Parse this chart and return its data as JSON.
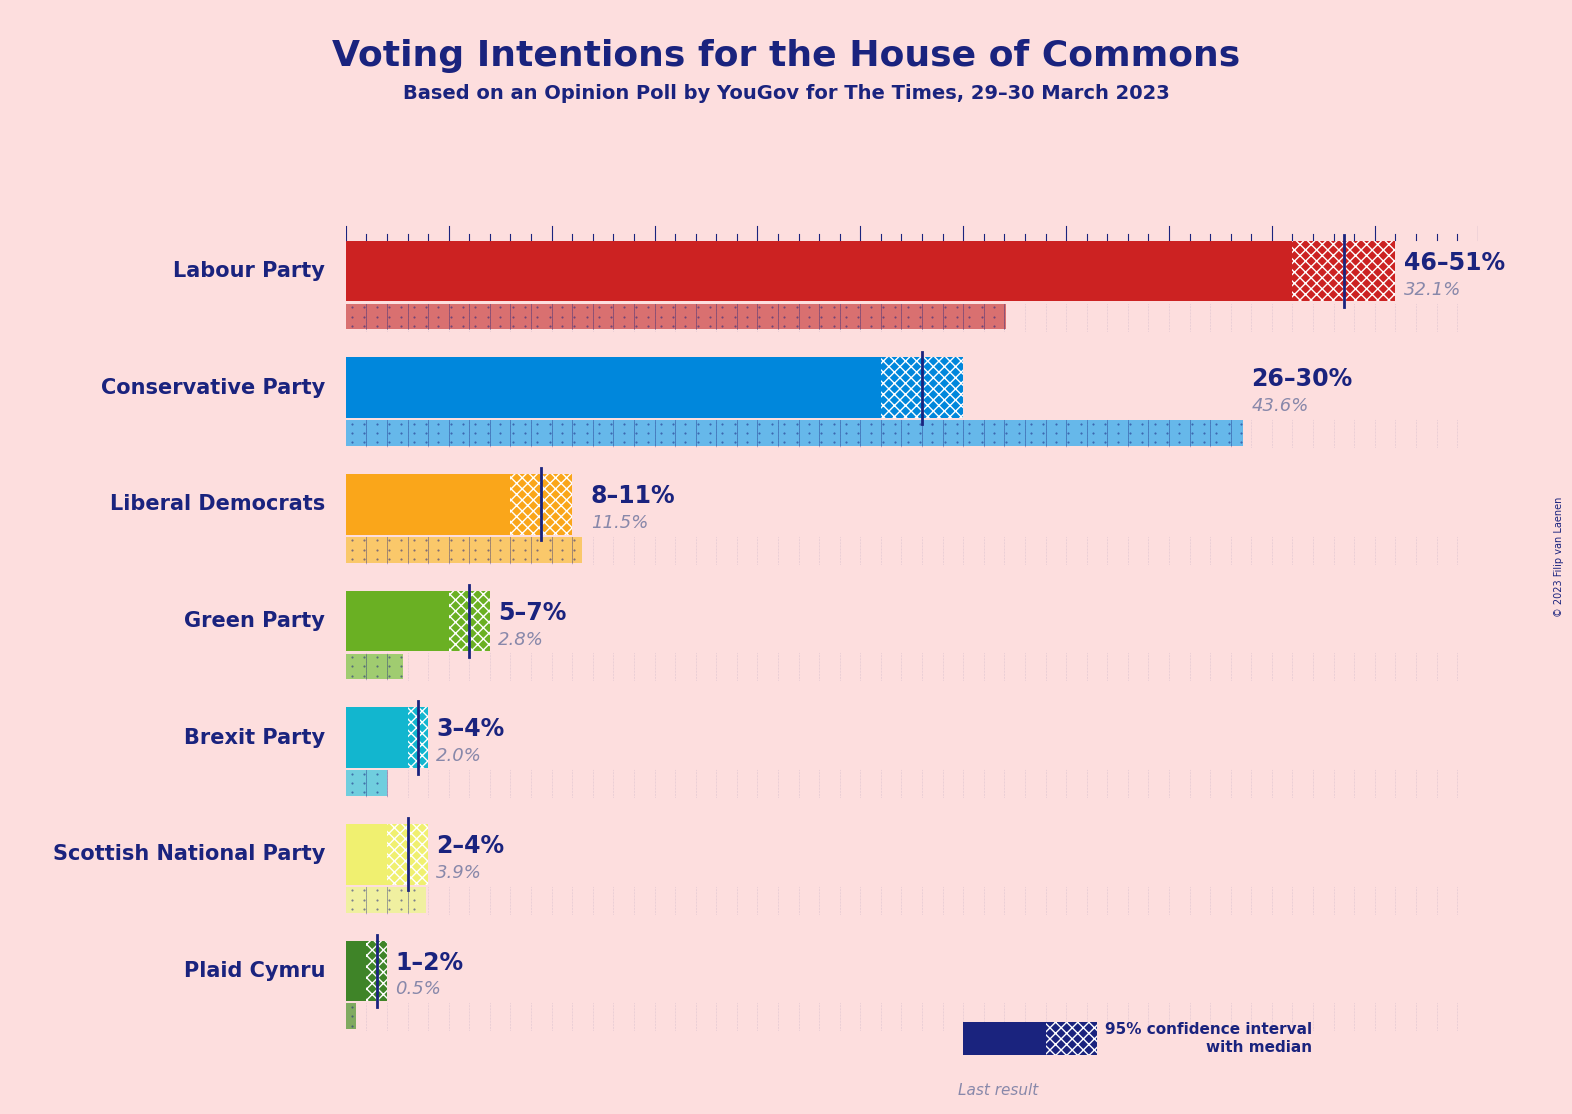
{
  "title": "Voting Intentions for the House of Commons",
  "subtitle": "Based on an Opinion Poll by YouGov for The Times, 29–30 March 2023",
  "copyright": "© 2023 Filip van Laenen",
  "background_color": "#FDDEDE",
  "parties": [
    {
      "name": "Labour Party",
      "ci_low": 46,
      "ci_high": 51,
      "median": 48.5,
      "last_result": 32.1,
      "color": "#CC2222",
      "color_light": "#D97070",
      "label": "46–51%",
      "last_label": "32.1%"
    },
    {
      "name": "Conservative Party",
      "ci_low": 26,
      "ci_high": 30,
      "median": 28,
      "last_result": 43.6,
      "color": "#0087DC",
      "color_light": "#66B8EA",
      "label": "26–30%",
      "last_label": "43.6%"
    },
    {
      "name": "Liberal Democrats",
      "ci_low": 8,
      "ci_high": 11,
      "median": 9.5,
      "last_result": 11.5,
      "color": "#FAA61A",
      "color_light": "#FAC86A",
      "label": "8–11%",
      "last_label": "11.5%"
    },
    {
      "name": "Green Party",
      "ci_low": 5,
      "ci_high": 7,
      "median": 6,
      "last_result": 2.8,
      "color": "#6AB023",
      "color_light": "#A0CC70",
      "label": "5–7%",
      "last_label": "2.8%"
    },
    {
      "name": "Brexit Party",
      "ci_low": 3,
      "ci_high": 4,
      "median": 3.5,
      "last_result": 2.0,
      "color": "#12B6CF",
      "color_light": "#70CEDE",
      "label": "3–4%",
      "last_label": "2.0%"
    },
    {
      "name": "Scottish National Party",
      "ci_low": 2,
      "ci_high": 4,
      "median": 3,
      "last_result": 3.9,
      "color": "#F0F070",
      "color_light": "#F0F0A0",
      "label": "2–4%",
      "last_label": "3.9%"
    },
    {
      "name": "Plaid Cymru",
      "ci_low": 1,
      "ci_high": 2,
      "median": 1.5,
      "last_result": 0.5,
      "color": "#3F8428",
      "color_light": "#80AA60",
      "label": "1–2%",
      "last_label": "0.5%"
    }
  ],
  "title_color": "#1A237E",
  "subtitle_color": "#1A237E",
  "party_name_color": "#1A237E",
  "label_color": "#1A237E",
  "last_label_color": "#8888AA",
  "tick_color": "#1A237E",
  "legend_bar_color": "#1A237E",
  "xmax": 55,
  "bar_height": 0.52,
  "last_bar_height": 0.22,
  "bar_spacing": 1.0
}
